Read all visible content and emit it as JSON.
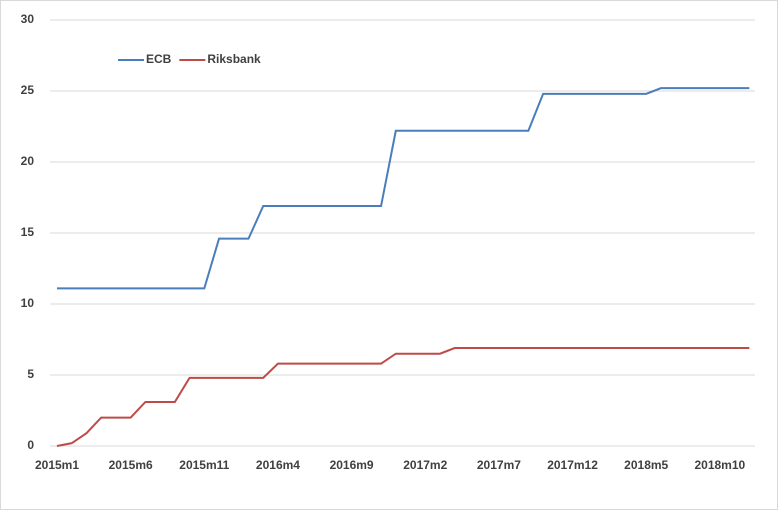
{
  "chart_data": {
    "type": "line",
    "categories": [
      "2015m1",
      null,
      null,
      null,
      null,
      "2015m6",
      null,
      null,
      null,
      null,
      "2015m11",
      null,
      null,
      null,
      null,
      "2016m4",
      null,
      null,
      null,
      null,
      "2016m9",
      null,
      null,
      null,
      null,
      "2017m2",
      null,
      null,
      null,
      null,
      "2017m7",
      null,
      null,
      null,
      null,
      "2017m12",
      null,
      null,
      null,
      null,
      "2018m5",
      null,
      null,
      null,
      null,
      "2018m10",
      null,
      null
    ],
    "series": [
      {
        "name": "ECB",
        "color": "#4a7ebb",
        "values": [
          11.1,
          11.1,
          11.1,
          11.1,
          11.1,
          11.1,
          11.1,
          11.1,
          11.1,
          11.1,
          11.1,
          14.6,
          14.6,
          14.6,
          16.9,
          16.9,
          16.9,
          16.9,
          16.9,
          16.9,
          16.9,
          16.9,
          16.9,
          22.2,
          22.2,
          22.2,
          22.2,
          22.2,
          22.2,
          22.2,
          22.2,
          22.2,
          22.2,
          24.8,
          24.8,
          24.8,
          24.8,
          24.8,
          24.8,
          24.8,
          24.8,
          25.2,
          25.2,
          25.2,
          25.2,
          25.2,
          25.2,
          25.2
        ]
      },
      {
        "name": "Riksbank",
        "color": "#be4b48",
        "values": [
          0,
          0.2,
          0.9,
          2.0,
          2.0,
          2.0,
          3.1,
          3.1,
          3.1,
          4.8,
          4.8,
          4.8,
          4.8,
          4.8,
          4.8,
          5.8,
          5.8,
          5.8,
          5.8,
          5.8,
          5.8,
          5.8,
          5.8,
          6.5,
          6.5,
          6.5,
          6.5,
          6.9,
          6.9,
          6.9,
          6.9,
          6.9,
          6.9,
          6.9,
          6.9,
          6.9,
          6.9,
          6.9,
          6.9,
          6.9,
          6.9,
          6.9,
          6.9,
          6.9,
          6.9,
          6.9,
          6.9,
          6.9
        ]
      }
    ],
    "ylim": [
      0,
      30
    ],
    "yticks": [
      0,
      5,
      10,
      15,
      20,
      25,
      30
    ],
    "grid": true,
    "legend": "top-left"
  }
}
